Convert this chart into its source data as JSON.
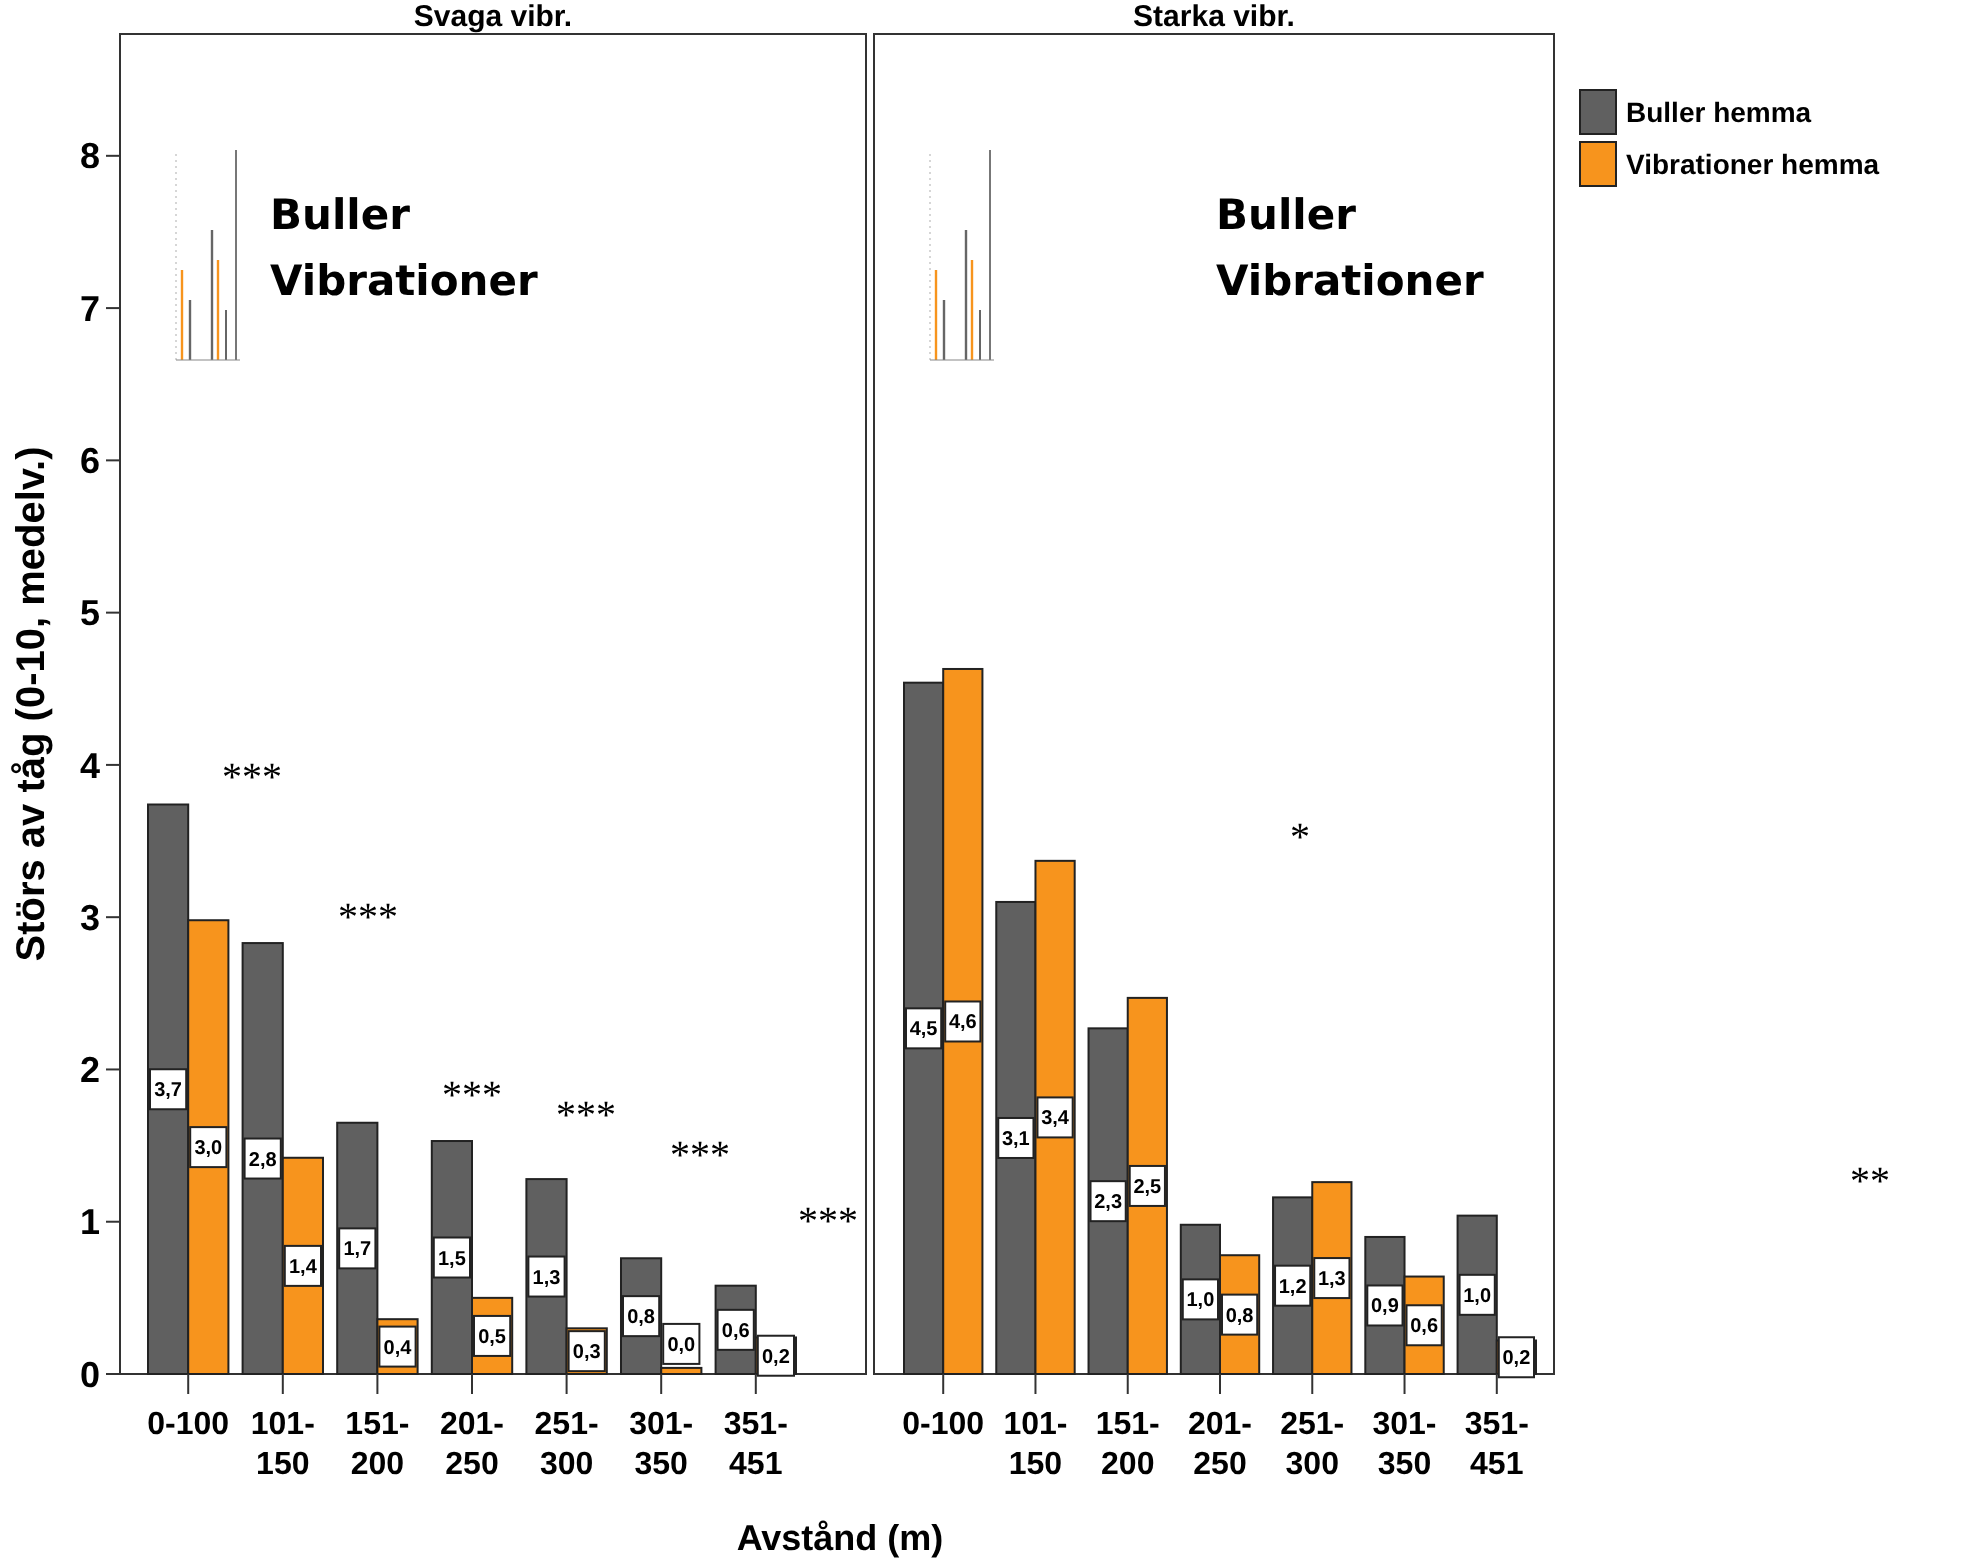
{
  "chart_data": [
    {
      "type": "bar",
      "title": "Svaga vibr.",
      "ylabel": "Störs av tåg (0-10, medelv.)",
      "xlabel": "Avstånd (m)",
      "categories": [
        "0-100",
        "101-150",
        "151-200",
        "201-250",
        "251-300",
        "301-350",
        "351-451"
      ],
      "ylim": [
        0,
        8.8
      ],
      "yticks": [
        0,
        1,
        2,
        3,
        4,
        5,
        6,
        7,
        8
      ],
      "series": [
        {
          "color": "#606060",
          "values": [
            3.74,
            2.83,
            1.65,
            1.53,
            1.28,
            0.76,
            0.58
          ],
          "value_labels": [
            "3,7",
            "2,8",
            "1,7",
            "1,5",
            "1,3",
            "0,8",
            "0,6"
          ]
        },
        {
          "color": "#f7941d",
          "values": [
            2.98,
            1.42,
            0.36,
            0.5,
            0.3,
            0.04,
            0.24
          ],
          "value_labels": [
            "3,0",
            "1,4",
            "0,4",
            "0,5",
            "0,3",
            "0,0",
            "0,2"
          ]
        }
      ],
      "annotations": [
        "Buller",
        "Vibrationer",
        "***",
        "***",
        "***",
        "***",
        "***",
        "***"
      ]
    },
    {
      "type": "bar",
      "title": "Starka vibr.",
      "categories": [
        "0-100",
        "101-150",
        "151-200",
        "201-250",
        "251-300",
        "301-350",
        "351-451"
      ],
      "ylim": [
        0,
        8.8
      ],
      "tick_labels": "x",
      "legend": "right",
      "series": [
        {
          "name": "Buller hemma",
          "color": "#606060",
          "values": [
            4.54,
            3.1,
            2.27,
            0.98,
            1.16,
            0.9,
            1.04
          ],
          "value_labels": [
            "4,5",
            "3,1",
            "2,3",
            "1,0",
            "1,2",
            "0,9",
            "1,0"
          ]
        },
        {
          "name": "Vibrationer hemma",
          "color": "#f7941d",
          "values": [
            4.63,
            3.37,
            2.47,
            0.78,
            1.26,
            0.64,
            0.22
          ],
          "value_labels": [
            "4,6",
            "3,4",
            "2,5",
            "0,8",
            "1,3",
            "0,6",
            "0,2"
          ]
        }
      ],
      "annotations": [
        "Buller",
        "Vibrationer",
        "*",
        "**"
      ]
    }
  ]
}
